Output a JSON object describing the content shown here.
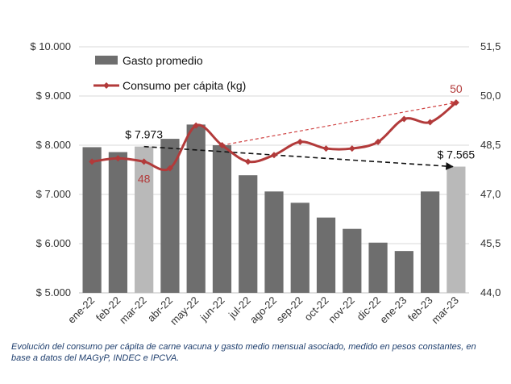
{
  "chart_data": {
    "type": "bar",
    "categories": [
      "ene-22",
      "feb-22",
      "mar-22",
      "abr-22",
      "may-22",
      "jun-22",
      "jul-22",
      "ago-22",
      "sep-22",
      "oct-22",
      "nov-22",
      "dic-22",
      "ene-23",
      "feb-23",
      "mar-23"
    ],
    "series": [
      {
        "name": "Gasto promedio",
        "type": "bar",
        "axis": "left",
        "values": [
          7960,
          7860,
          7973,
          8130,
          8420,
          8000,
          7390,
          7060,
          6830,
          6530,
          6300,
          6020,
          5850,
          7060,
          7565
        ],
        "highlight_indices": [
          2,
          14
        ],
        "color": "#6e6e6e",
        "highlight_color": "#b9b9b9"
      },
      {
        "name": "Consumo per cápita (kg)",
        "type": "line",
        "axis": "right",
        "values": [
          48.0,
          48.1,
          48.0,
          47.8,
          49.1,
          48.5,
          48.0,
          48.2,
          48.6,
          48.4,
          48.4,
          48.6,
          49.3,
          49.2,
          49.8
        ],
        "color": "#b23a3a"
      }
    ],
    "y_left": {
      "ylim": [
        5000,
        10000
      ],
      "ticks": [
        5000,
        6000,
        7000,
        8000,
        9000,
        10000
      ],
      "tick_labels": [
        "$ 5.000",
        "$ 6.000",
        "$ 7.000",
        "$ 8.000",
        "$ 9.000",
        "$ 10.000"
      ]
    },
    "y_right": {
      "ylim": [
        44.0,
        51.5
      ],
      "ticks": [
        44.0,
        45.5,
        47.0,
        48.5,
        50.0,
        51.5
      ],
      "tick_labels": [
        "44,0",
        "45,5",
        "47,0",
        "48,5",
        "50,0",
        "51,5"
      ]
    },
    "trend_lines": [
      {
        "series": "Gasto promedio",
        "from_index": 2,
        "to_index": 14,
        "from_value": 7973,
        "to_value": 7565,
        "color": "#111111"
      },
      {
        "series": "Consumo per cápita (kg)",
        "from_index": 5,
        "to_index": 14,
        "from_value": 48.5,
        "to_value": 49.8,
        "color": "#d04545"
      }
    ],
    "annotations": [
      {
        "text": "$ 7.973",
        "index": 2,
        "series": "Gasto promedio",
        "color": "#111111"
      },
      {
        "text": "$ 7.565",
        "index": 14,
        "series": "Gasto promedio",
        "color": "#111111"
      },
      {
        "text": "48",
        "index": 2,
        "series": "Consumo per cápita (kg)",
        "color": "#b23a3a"
      },
      {
        "text": "50",
        "index": 14,
        "series": "Consumo per cápita (kg)",
        "color": "#b23a3a"
      }
    ],
    "legend": {
      "position": "top-left",
      "entries": [
        "Gasto promedio",
        "Consumo per cápita (kg)"
      ]
    },
    "grid": true,
    "title": "",
    "xlabel": "",
    "ylabel": ""
  },
  "caption": {
    "text": "Evolución del consumo per cápita de carne vacuna y gasto medio mensual asociado, medido en pesos constantes, en base a datos del MAGyP, INDEC e IPCVA."
  }
}
